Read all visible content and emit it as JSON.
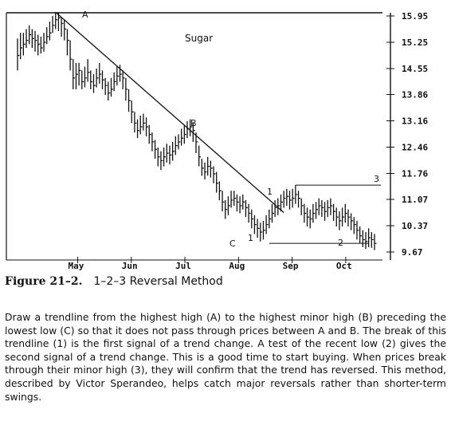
{
  "chart_data": {
    "type": "ohlc",
    "title": "Sugar",
    "x_months": [
      "May",
      "Jun",
      "Jul",
      "Aug",
      "Sep",
      "Oct"
    ],
    "y_ticks": [
      "15.95",
      "15.25",
      "14.55",
      "13.86",
      "13.16",
      "12.46",
      "11.76",
      "11.07",
      "10.37",
      "9.67"
    ],
    "ylim": [
      9.67,
      15.95
    ],
    "x_range": [
      0,
      140
    ],
    "grid": false,
    "series": [
      {
        "values": [
          [
            14.9,
            15.35,
            14.5
          ],
          [
            15.1,
            15.5,
            14.8
          ],
          [
            15.2,
            15.5,
            14.9
          ],
          [
            15.3,
            15.6,
            15.1
          ],
          [
            15.45,
            15.7,
            15.2
          ],
          [
            15.35,
            15.6,
            15.1
          ],
          [
            15.3,
            15.55,
            15.0
          ],
          [
            15.2,
            15.45,
            14.9
          ],
          [
            15.1,
            15.4,
            14.95
          ],
          [
            15.25,
            15.5,
            15.0
          ],
          [
            15.4,
            15.65,
            15.2
          ],
          [
            15.5,
            15.8,
            15.3
          ],
          [
            15.7,
            15.95,
            15.5
          ],
          [
            15.85,
            16.05,
            15.6
          ],
          [
            15.9,
            16.05,
            15.55
          ],
          [
            15.75,
            15.9,
            15.4
          ],
          [
            15.6,
            15.85,
            15.3
          ],
          [
            15.3,
            15.6,
            14.9
          ],
          [
            14.8,
            15.3,
            14.5
          ],
          [
            14.3,
            14.8,
            14.0
          ],
          [
            14.4,
            14.7,
            14.0
          ],
          [
            14.5,
            14.7,
            14.1
          ],
          [
            14.2,
            14.5,
            14.0
          ],
          [
            14.3,
            14.6,
            14.05
          ],
          [
            14.45,
            14.8,
            14.2
          ],
          [
            14.2,
            14.5,
            14.0
          ],
          [
            14.1,
            14.4,
            13.9
          ],
          [
            14.3,
            14.55,
            14.05
          ],
          [
            14.4,
            14.7,
            14.15
          ],
          [
            14.25,
            14.5,
            14.0
          ],
          [
            14.1,
            14.3,
            13.85
          ],
          [
            13.9,
            14.2,
            13.7
          ],
          [
            14.0,
            14.3,
            13.8
          ],
          [
            14.2,
            14.45,
            13.95
          ],
          [
            14.35,
            14.6,
            14.1
          ],
          [
            14.4,
            14.65,
            14.2
          ],
          [
            14.3,
            14.5,
            14.0
          ],
          [
            14.0,
            14.3,
            13.7
          ],
          [
            13.7,
            14.0,
            13.4
          ],
          [
            13.4,
            13.7,
            13.1
          ],
          [
            13.1,
            13.4,
            12.85
          ],
          [
            12.9,
            13.2,
            12.7
          ],
          [
            13.0,
            13.3,
            12.8
          ],
          [
            13.1,
            13.35,
            12.9
          ],
          [
            13.0,
            13.25,
            12.75
          ],
          [
            12.8,
            13.05,
            12.55
          ],
          [
            12.6,
            12.85,
            12.35
          ],
          [
            12.4,
            12.65,
            12.15
          ],
          [
            12.2,
            12.45,
            11.95
          ],
          [
            12.1,
            12.35,
            11.85
          ],
          [
            12.2,
            12.45,
            11.95
          ],
          [
            12.3,
            12.55,
            12.05
          ],
          [
            12.25,
            12.5,
            12.0
          ],
          [
            12.35,
            12.6,
            12.1
          ],
          [
            12.5,
            12.75,
            12.25
          ],
          [
            12.6,
            12.8,
            12.4
          ],
          [
            12.7,
            12.95,
            12.5
          ],
          [
            12.8,
            13.05,
            12.55
          ],
          [
            12.95,
            13.15,
            12.7
          ],
          [
            13.0,
            13.2,
            12.75
          ],
          [
            12.9,
            13.1,
            12.6
          ],
          [
            12.6,
            12.85,
            12.3
          ],
          [
            12.2,
            12.5,
            11.95
          ],
          [
            11.9,
            12.15,
            11.7
          ],
          [
            11.8,
            12.05,
            11.6
          ],
          [
            11.95,
            12.2,
            11.7
          ],
          [
            11.9,
            12.1,
            11.65
          ],
          [
            11.75,
            11.95,
            11.5
          ],
          [
            11.5,
            11.8,
            11.25
          ],
          [
            11.3,
            11.55,
            11.05
          ],
          [
            11.0,
            11.3,
            10.75
          ],
          [
            10.8,
            11.05,
            10.55
          ],
          [
            10.9,
            11.15,
            10.65
          ],
          [
            11.05,
            11.3,
            10.85
          ],
          [
            11.1,
            11.3,
            10.9
          ],
          [
            11.0,
            11.2,
            10.75
          ],
          [
            10.9,
            11.15,
            10.7
          ],
          [
            11.0,
            11.2,
            10.8
          ],
          [
            10.85,
            11.05,
            10.6
          ],
          [
            10.7,
            10.95,
            10.45
          ],
          [
            10.55,
            10.8,
            10.3
          ],
          [
            10.4,
            10.65,
            10.15
          ],
          [
            10.3,
            10.55,
            10.05
          ],
          [
            10.2,
            10.45,
            9.95
          ],
          [
            10.25,
            10.5,
            10.0
          ],
          [
            10.4,
            10.65,
            10.15
          ],
          [
            10.55,
            10.8,
            10.3
          ],
          [
            10.7,
            10.95,
            10.45
          ],
          [
            10.85,
            11.05,
            10.6
          ],
          [
            10.9,
            11.1,
            10.65
          ],
          [
            11.0,
            11.2,
            10.75
          ],
          [
            11.1,
            11.3,
            10.85
          ],
          [
            11.15,
            11.35,
            10.9
          ],
          [
            11.05,
            11.3,
            10.8
          ],
          [
            11.1,
            11.35,
            10.85
          ],
          [
            11.2,
            11.45,
            10.95
          ],
          [
            11.1,
            11.3,
            10.85
          ],
          [
            10.9,
            11.1,
            10.65
          ],
          [
            10.7,
            10.95,
            10.45
          ],
          [
            10.6,
            10.85,
            10.35
          ],
          [
            10.55,
            10.8,
            10.3
          ],
          [
            10.7,
            10.95,
            10.45
          ],
          [
            10.8,
            11.0,
            10.55
          ],
          [
            10.9,
            11.1,
            10.65
          ],
          [
            10.85,
            11.05,
            10.6
          ],
          [
            10.75,
            11.0,
            10.5
          ],
          [
            10.85,
            11.05,
            10.6
          ],
          [
            10.9,
            11.1,
            10.65
          ],
          [
            10.75,
            10.95,
            10.5
          ],
          [
            10.6,
            10.85,
            10.35
          ],
          [
            10.5,
            10.75,
            10.25
          ],
          [
            10.6,
            10.85,
            10.35
          ],
          [
            10.7,
            10.95,
            10.45
          ],
          [
            10.6,
            10.8,
            10.35
          ],
          [
            10.5,
            10.7,
            10.25
          ],
          [
            10.4,
            10.6,
            10.15
          ],
          [
            10.25,
            10.5,
            10.0
          ],
          [
            10.1,
            10.35,
            9.9
          ],
          [
            10.0,
            10.25,
            9.8
          ],
          [
            9.95,
            10.2,
            9.75
          ],
          [
            10.05,
            10.3,
            9.8
          ],
          [
            10.0,
            10.2,
            9.78
          ],
          [
            9.9,
            10.15,
            9.72
          ]
        ]
      }
    ]
  },
  "figure": {
    "label": "Figure 21–2.",
    "title": "1–2–3 Reversal Method"
  },
  "annotations": {
    "A": "A",
    "B": "B",
    "C": "C",
    "one": "1",
    "two": "2",
    "three": "3",
    "one_upper": "1"
  },
  "description": "Draw a trendline from the highest high (A) to the highest minor high (B) preceding the lowest low (C) so that it does not pass through prices between A and B. The break of this trendline (1) is the first signal of a trend change. A test of the recent low (2) gives the second signal of a trend change. This is a good time to start buying. When prices break through their minor high (3), they will confirm that the trend has reversed. This method, described by Victor Sperandeo, helps catch major reversals rather than shorter-term swings."
}
